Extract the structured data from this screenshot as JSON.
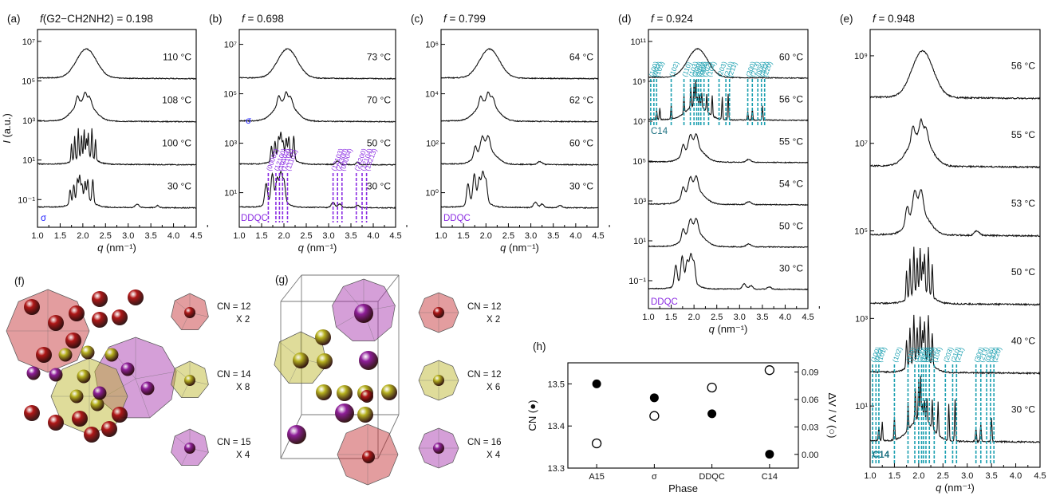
{
  "chart_data": [
    {
      "id": "a",
      "type": "line",
      "panel_label": "(a)",
      "title_prefix": "f",
      "title": "(G2−CH2NH2) = 0.198",
      "xlabel": "q (nm⁻¹)",
      "ylabel": "I (a.u.)",
      "yscale": "log",
      "xlim": [
        1.0,
        4.5
      ],
      "x_ticks": [
        "1.0",
        "1.5",
        "2.0",
        "2.5",
        "3.0",
        "3.5",
        "4.0",
        "4.5"
      ],
      "y_ticks": [
        "10⁷",
        "10⁵",
        "10³",
        "10¹",
        "10⁻¹"
      ],
      "series": [
        {
          "name": "110 °C",
          "shape": "disordered"
        },
        {
          "name": "108 °C",
          "shape": "weak"
        },
        {
          "name": "100 °C",
          "shape": "sharp"
        },
        {
          "name": "30 °C",
          "shape": "sigma"
        }
      ],
      "phase_labels": [
        {
          "text": "σ",
          "color": "#1a1aff"
        }
      ]
    },
    {
      "id": "b",
      "type": "line",
      "panel_label": "(b)",
      "title_prefix": "f",
      "title": " = 0.698",
      "xlabel": "q (nm⁻¹)",
      "xlim": [
        1.0,
        4.5
      ],
      "x_ticks": [
        "1.0",
        "1.5",
        "2.0",
        "2.5",
        "3.0",
        "3.5",
        "4.0",
        "4.5"
      ],
      "y_ticks": [
        "10⁷",
        "10⁵",
        "10³",
        "10¹"
      ],
      "series": [
        {
          "name": "73 °C",
          "shape": "disordered"
        },
        {
          "name": "70 °C",
          "shape": "weak"
        },
        {
          "name": "50 °C",
          "shape": "sigma"
        },
        {
          "name": "30 °C",
          "shape": "ddqc"
        }
      ],
      "phase_labels": [
        {
          "text": "σ",
          "color": "#1a1aff"
        },
        {
          "text": "DDQC",
          "color": "#8a2be2"
        }
      ],
      "peak_labels": [
        "(00002)",
        "(12100)",
        "(10102)",
        "(12101)",
        "(11102)",
        "(12103)",
        "(23300)",
        "(00004)",
        "(24200)",
        "(12104)",
        "(13213)"
      ]
    },
    {
      "id": "c",
      "type": "line",
      "panel_label": "(c)",
      "title_prefix": "f",
      "title": " = 0.799",
      "xlabel": "q (nm⁻¹)",
      "xlim": [
        1.0,
        4.5
      ],
      "x_ticks": [
        "1.0",
        "1.5",
        "2.0",
        "2.5",
        "3.0",
        "3.5",
        "4.0",
        "4.5"
      ],
      "y_ticks": [
        "10⁶",
        "10⁴",
        "10²",
        "10⁰"
      ],
      "series": [
        {
          "name": "64 °C",
          "shape": "disordered"
        },
        {
          "name": "62 °C",
          "shape": "weak"
        },
        {
          "name": "60 °C",
          "shape": "weak2"
        },
        {
          "name": "30 °C",
          "shape": "ddqc"
        }
      ],
      "phase_labels": [
        {
          "text": "DDQC",
          "color": "#8a2be2"
        }
      ]
    },
    {
      "id": "d",
      "type": "line",
      "panel_label": "(d)",
      "title_prefix": "f",
      "title": " = 0.924",
      "xlabel": "q (nm⁻¹)",
      "xlim": [
        1.0,
        4.5
      ],
      "x_ticks": [
        "1.0",
        "1.5",
        "2.0",
        "2.5",
        "3.0",
        "3.5",
        "4.0",
        "4.5"
      ],
      "y_ticks": [
        "10¹¹",
        "10⁹",
        "10⁷",
        "10⁵",
        "10³",
        "10¹",
        "10⁻¹"
      ],
      "series": [
        {
          "name": "60 °C",
          "shape": "disordered"
        },
        {
          "name": "56 °C",
          "shape": "c14"
        },
        {
          "name": "55 °C",
          "shape": "weak2"
        },
        {
          "name": "54 °C",
          "shape": "weak2"
        },
        {
          "name": "50 °C",
          "shape": "weak2"
        },
        {
          "name": "30 °C",
          "shape": "ddqc"
        }
      ],
      "phase_labels": [
        {
          "text": "C14",
          "color": "#1a6f80"
        },
        {
          "text": "DDQC",
          "color": "#8a2be2"
        }
      ],
      "peak_labels": [
        "(100)",
        "(002)",
        "(101)",
        "(102)",
        "(110)",
        "(103)",
        "(200)",
        "(112)",
        "(201)",
        "(004)",
        "(202)",
        "(104)",
        "(203)",
        "(210)",
        "(211)",
        "(300)",
        "(213)",
        "(006)",
        "(302)",
        "(220)"
      ]
    },
    {
      "id": "e",
      "type": "line",
      "panel_label": "(e)",
      "title_prefix": "f",
      "title": " = 0.948",
      "xlabel": "q (nm⁻¹)",
      "xlim": [
        1.0,
        4.5
      ],
      "x_ticks": [
        "1.0",
        "1.5",
        "2.0",
        "2.5",
        "3.0",
        "3.5",
        "4.0",
        "4.5"
      ],
      "y_ticks": [
        "10⁹",
        "10⁷",
        "10⁵",
        "10³",
        "10¹"
      ],
      "series": [
        {
          "name": "56 °C",
          "shape": "disordered"
        },
        {
          "name": "55 °C",
          "shape": "weak"
        },
        {
          "name": "53 °C",
          "shape": "weak2"
        },
        {
          "name": "50 °C",
          "shape": "sharp"
        },
        {
          "name": "40 °C",
          "shape": "sharp"
        },
        {
          "name": "30 °C",
          "shape": "c14"
        }
      ],
      "phase_labels": [
        {
          "text": "C14",
          "color": "#1a6f80"
        }
      ],
      "peak_labels": [
        "(100)",
        "(002)",
        "(101)",
        "(102)",
        "(110)",
        "(103)",
        "(200)",
        "(112)",
        "(201)",
        "(004)",
        "(202)",
        "(104)",
        "(203)",
        "(210)",
        "(211)",
        "(300)",
        "(213)",
        "(006)",
        "(302)",
        "(220)"
      ]
    },
    {
      "id": "h",
      "type": "scatter",
      "panel_label": "(h)",
      "xlabel": "Phase",
      "ylabel_left": "CN (●)",
      "ylabel_right": "ΔV / V (○)",
      "categories": [
        "A15",
        "σ",
        "DDQC",
        "C14"
      ],
      "ylim_left": [
        13.3,
        13.55
      ],
      "ylim_right": [
        -0.015,
        0.1
      ],
      "left_ticks": [
        "13.3",
        "13.4",
        "13.5"
      ],
      "right_ticks": [
        "0.00",
        "0.03",
        "0.06",
        "0.09"
      ],
      "series": [
        {
          "name": "CN",
          "marker": "filled",
          "values": [
            13.5,
            13.467,
            13.429,
            13.333
          ]
        },
        {
          "name": "ΔV/V",
          "marker": "open",
          "values": [
            0.012,
            0.042,
            0.073,
            0.092
          ]
        }
      ]
    }
  ],
  "panels_3d": {
    "f": {
      "label": "(f)",
      "items": [
        {
          "cn": "CN = 12",
          "mult": "X 2",
          "color": "#c0262a"
        },
        {
          "cn": "CN = 14",
          "mult": "X 8",
          "color": "#b7b21f"
        },
        {
          "cn": "CN = 15",
          "mult": "X 4",
          "color": "#a22aa8"
        }
      ]
    },
    "g": {
      "label": "(g)",
      "items": [
        {
          "cn": "CN = 12",
          "mult": "X 2",
          "color": "#c0262a"
        },
        {
          "cn": "CN = 12",
          "mult": "X 6",
          "color": "#b7b21f"
        },
        {
          "cn": "CN = 16",
          "mult": "X 4",
          "color": "#a22aa8"
        }
      ]
    }
  },
  "colors": {
    "sigma": "#1a1aff",
    "ddqc": "#8a2be2",
    "c14": "#1a9fb0",
    "red": "#b01818",
    "yellow": "#b7b21f",
    "purple": "#8f1f9a"
  }
}
